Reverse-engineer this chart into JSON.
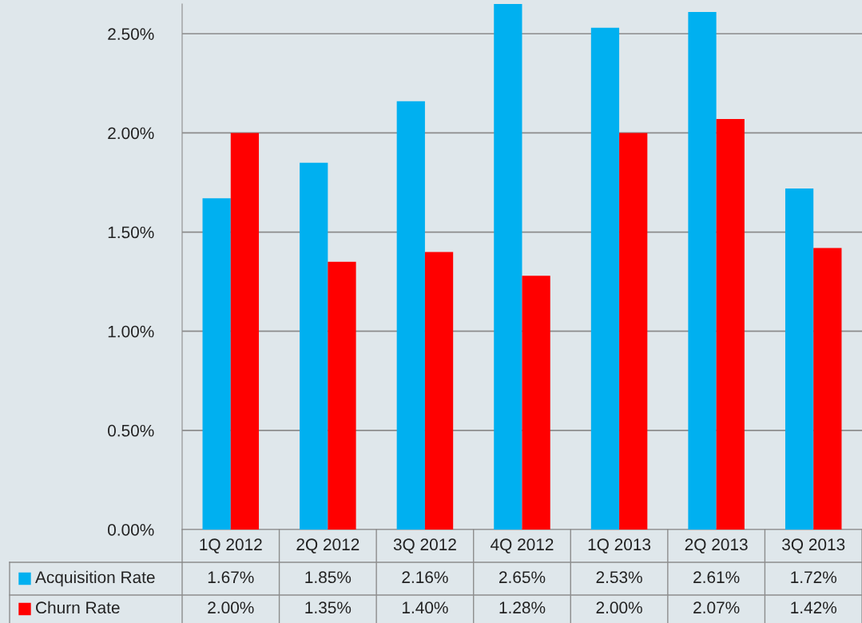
{
  "chart_data": {
    "type": "bar",
    "categories": [
      "1Q 2012",
      "2Q 2012",
      "3Q 2012",
      "4Q 2012",
      "1Q 2013",
      "2Q 2013",
      "3Q 2013"
    ],
    "series": [
      {
        "name": "Acquisition Rate",
        "color": "#00b0f0",
        "values": [
          1.67,
          1.85,
          2.16,
          2.65,
          2.53,
          2.61,
          1.72
        ],
        "value_labels": [
          "1.67%",
          "1.85%",
          "2.16%",
          "2.65%",
          "2.53%",
          "2.61%",
          "1.72%"
        ]
      },
      {
        "name": "Churn Rate",
        "color": "#ff0000",
        "values": [
          2.0,
          1.35,
          1.4,
          1.28,
          2.0,
          2.07,
          1.42
        ],
        "value_labels": [
          "2.00%",
          "1.35%",
          "1.40%",
          "1.28%",
          "2.00%",
          "2.07%",
          "1.42%"
        ]
      }
    ],
    "ylim": [
      0,
      2.65
    ],
    "yticks": [
      {
        "value": 0,
        "label": "0.00%"
      },
      {
        "value": 0.5,
        "label": "0.50%"
      },
      {
        "value": 1,
        "label": "1.00%"
      },
      {
        "value": 1.5,
        "label": "1.50%"
      },
      {
        "value": 2,
        "label": "2.00%"
      },
      {
        "value": 2.5,
        "label": "2.50%"
      }
    ],
    "grid": "y",
    "legend": "bottom",
    "data_labels": true
  }
}
